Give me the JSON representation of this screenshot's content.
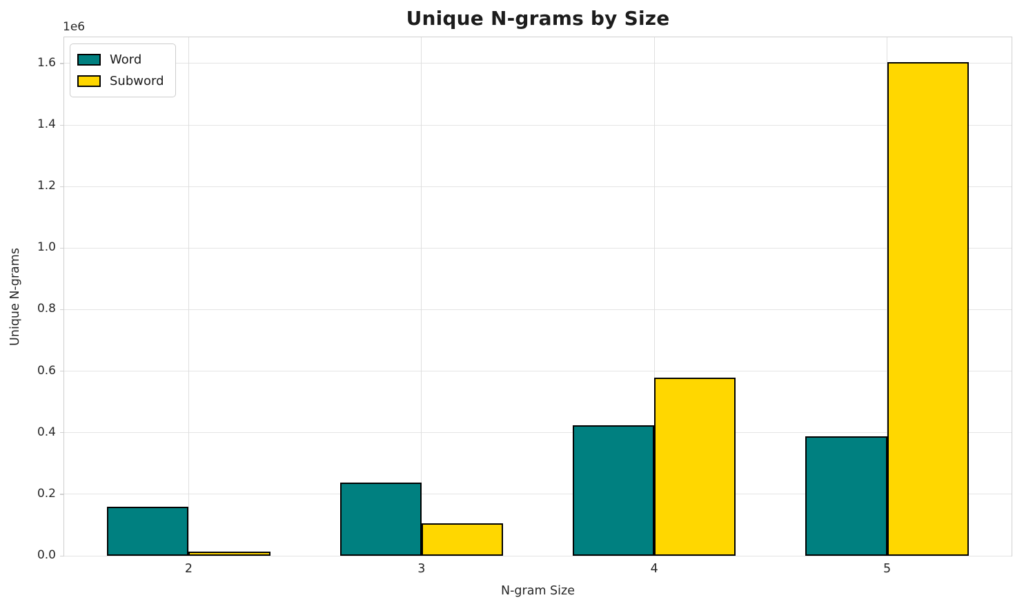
{
  "chart_data": {
    "type": "bar",
    "title": "Unique N-grams by Size",
    "xlabel": "N-gram Size",
    "ylabel": "Unique N-grams",
    "y_offset_label": "1e6",
    "categories": [
      "2",
      "3",
      "4",
      "5"
    ],
    "x": [
      2,
      3,
      4,
      5
    ],
    "series": [
      {
        "name": "Word",
        "color": "#008080",
        "values": [
          160000,
          237000,
          425000,
          388000
        ]
      },
      {
        "name": "Subword",
        "color": "#FFD700",
        "values": [
          13000,
          106000,
          580000,
          1605000
        ]
      }
    ],
    "bar_width": 0.35,
    "edge_color": "#000000",
    "xlim": [
      1.465,
      5.535
    ],
    "ylim": [
      0,
      1685000
    ],
    "ytick_values": [
      0,
      200000,
      400000,
      600000,
      800000,
      1000000,
      1200000,
      1400000,
      1600000
    ],
    "ytick_labels": [
      "0.0",
      "0.2",
      "0.4",
      "0.6",
      "0.8",
      "1.0",
      "1.2",
      "1.4",
      "1.6"
    ],
    "grid": true,
    "legend_position": "upper left"
  },
  "style": {
    "grid_color_h": "#e4e4e4",
    "grid_color_v": "#dedede",
    "spine_color": "#cfcfcf",
    "tick_text_color": "#262626",
    "title_color": "#1c1c1c"
  }
}
